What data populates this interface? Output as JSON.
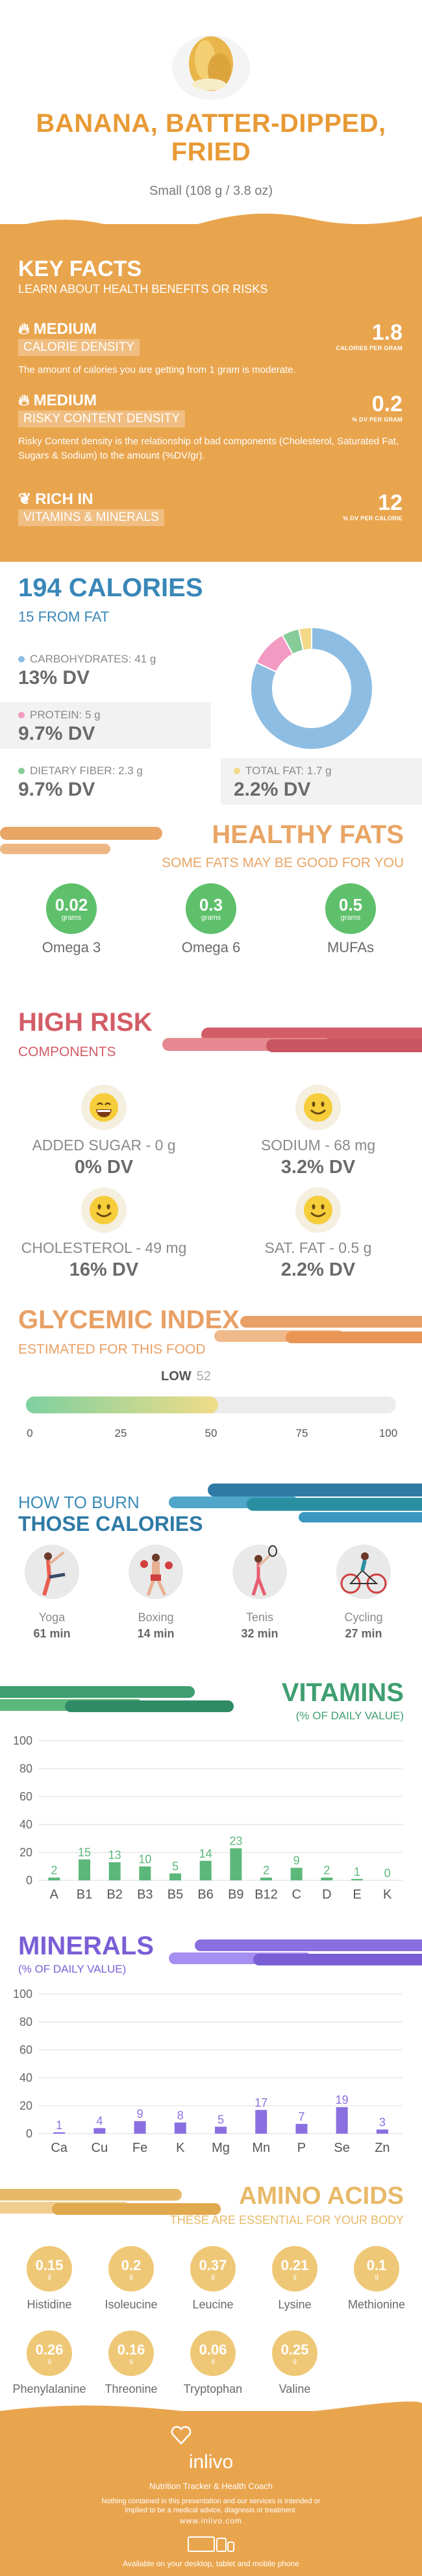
{
  "header": {
    "title_line1": "BANANA, BATTER-DIPPED,",
    "title_line2": "FRIED",
    "serving": "Small (108 g / 3.8 oz)"
  },
  "key_facts": {
    "title": "KEY FACTS",
    "subtitle": "LEARN ABOUT HEALTH BENEFITS OR RISKS",
    "calorie_density": {
      "level": "MEDIUM",
      "label": "CALORIE DENSITY",
      "value": "1.8",
      "unit": "CALORIES PER GRAM",
      "desc": "The amount of calories you are getting from 1 gram is moderate."
    },
    "risky_content": {
      "level": "MEDIUM",
      "label": "RISKY CONTENT DENSITY",
      "value": "0.2",
      "unit": "% DV PER GRAM",
      "desc": "Risky Content density is the relationship of bad components (Cholesterol, Saturated Fat, Sugars & Sodium) to the amount (%DV/gr)."
    },
    "rich_in": {
      "level": "RICH  IN",
      "label": "VITAMINS & MINERALS",
      "value": "12",
      "unit": "% DV PER CALORIE"
    }
  },
  "calories": {
    "total": "194 CALORIES",
    "from_fat": "15 FROM FAT",
    "macros": [
      {
        "label": "CARBOHYDRATES: 41 g",
        "dv": "13% DV",
        "color": "#8dbde3"
      },
      {
        "label": "PROTEIN: 5 g",
        "dv": "9.7% DV",
        "color": "#f29ac2"
      },
      {
        "label": "DIETARY FIBER: 2.3 g",
        "dv": "9.7% DV",
        "color": "#86cc98"
      },
      {
        "label": "TOTAL FAT: 1.7 g",
        "dv": "2.2% DV",
        "color": "#f4d889"
      }
    ],
    "donut": [
      {
        "name": "carbohydrates",
        "value": 41,
        "color": "#8dbde3"
      },
      {
        "name": "protein",
        "value": 5,
        "color": "#f29ac2"
      },
      {
        "name": "fiber",
        "value": 2.3,
        "color": "#86cc98"
      },
      {
        "name": "fat",
        "value": 1.7,
        "color": "#f4d889"
      }
    ]
  },
  "healthy_fats": {
    "title": "HEALTHY FATS",
    "subtitle": "SOME FATS MAY BE GOOD FOR YOU",
    "items": [
      {
        "value": "0.02",
        "unit": "grams",
        "name": "Omega 3"
      },
      {
        "value": "0.3",
        "unit": "grams",
        "name": "Omega 6"
      },
      {
        "value": "0.5",
        "unit": "grams",
        "name": "MUFAs"
      }
    ]
  },
  "high_risk": {
    "title": "HIGH RISK",
    "subtitle": "COMPONENTS",
    "items": [
      {
        "label": "ADDED SUGAR - 0 g",
        "dv": "0% DV"
      },
      {
        "label": "SODIUM - 68 mg",
        "dv": "3.2% DV"
      },
      {
        "label": "CHOLESTEROL - 49 mg",
        "dv": "16% DV"
      },
      {
        "label": "SAT. FAT - 0.5 g",
        "dv": "2.2% DV"
      }
    ]
  },
  "glycemic": {
    "title": "GLYCEMIC INDEX",
    "subtitle": "ESTIMATED FOR THIS FOOD",
    "level": "LOW",
    "value": "52",
    "index": 52,
    "ticks": [
      "0",
      "25",
      "50",
      "75",
      "100"
    ]
  },
  "burn": {
    "line1": "HOW TO BURN",
    "line2": "THOSE CALORIES",
    "activities": [
      {
        "name": "Yoga",
        "time": "61 min",
        "icon": "yoga-icon"
      },
      {
        "name": "Boxing",
        "time": "14 min",
        "icon": "boxing-icon"
      },
      {
        "name": "Tenis",
        "time": "32 min",
        "icon": "tennis-icon"
      },
      {
        "name": "Cycling",
        "time": "27 min",
        "icon": "cycling-icon"
      }
    ]
  },
  "vitamins": {
    "title": "VITAMINS",
    "subtitle": "(% OF DAILY VALUE)"
  },
  "minerals": {
    "title": "MINERALS",
    "subtitle": "(% OF DAILY VALUE)"
  },
  "chart_data": [
    {
      "type": "bar",
      "categories": [
        "A",
        "B1",
        "B2",
        "B3",
        "B5",
        "B6",
        "B9",
        "B12",
        "C",
        "D",
        "E",
        "K"
      ],
      "values": [
        2,
        15,
        13,
        10,
        5,
        14,
        23,
        2,
        9,
        2,
        1,
        0
      ],
      "title": "VITAMINS",
      "subtitle": "(% OF DAILY VALUE)",
      "ylim": [
        0,
        100
      ],
      "yticks": [
        "0",
        "20",
        "40",
        "60",
        "80",
        "100"
      ],
      "color": "#5cb87a"
    },
    {
      "type": "bar",
      "categories": [
        "Ca",
        "Cu",
        "Fe",
        "K",
        "Mg",
        "Mn",
        "P",
        "Se",
        "Zn"
      ],
      "values": [
        1,
        4,
        9,
        8,
        5,
        17,
        7,
        19,
        3
      ],
      "title": "MINERALS",
      "subtitle": "(% OF DAILY VALUE)",
      "ylim": [
        0,
        100
      ],
      "yticks": [
        "0",
        "20",
        "40",
        "60",
        "80",
        "100"
      ],
      "color": "#8a6fe0"
    }
  ],
  "amino": {
    "title": "AMINO ACIDS",
    "subtitle": "THESE ARE ESSENTIAL FOR YOUR BODY",
    "items": [
      {
        "value": "0.15",
        "unit": "g",
        "name": "Histidine"
      },
      {
        "value": "0.2",
        "unit": "g",
        "name": "Isoleucine"
      },
      {
        "value": "0.37",
        "unit": "g",
        "name": "Leucine"
      },
      {
        "value": "0.21",
        "unit": "g",
        "name": "Lysine"
      },
      {
        "value": "0.1",
        "unit": "g",
        "name": "Methionine"
      },
      {
        "value": "0.26",
        "unit": "g",
        "name": "Phenylalanine"
      },
      {
        "value": "0.16",
        "unit": "g",
        "name": "Threonine"
      },
      {
        "value": "0.06",
        "unit": "g",
        "name": "Tryptophan"
      },
      {
        "value": "0.25",
        "unit": "g",
        "name": "Valine"
      }
    ]
  },
  "footer": {
    "brand": "inlivo",
    "tagline": "Nutrition Tracker & Health Coach",
    "disclaimer": "Nothing contained in this presentation and our services is intended or implied to be a medical advice, diagnosis or treatment.",
    "site": "www.inlivo.com",
    "available": "Available on your desktop, tablet and mobile phone"
  }
}
